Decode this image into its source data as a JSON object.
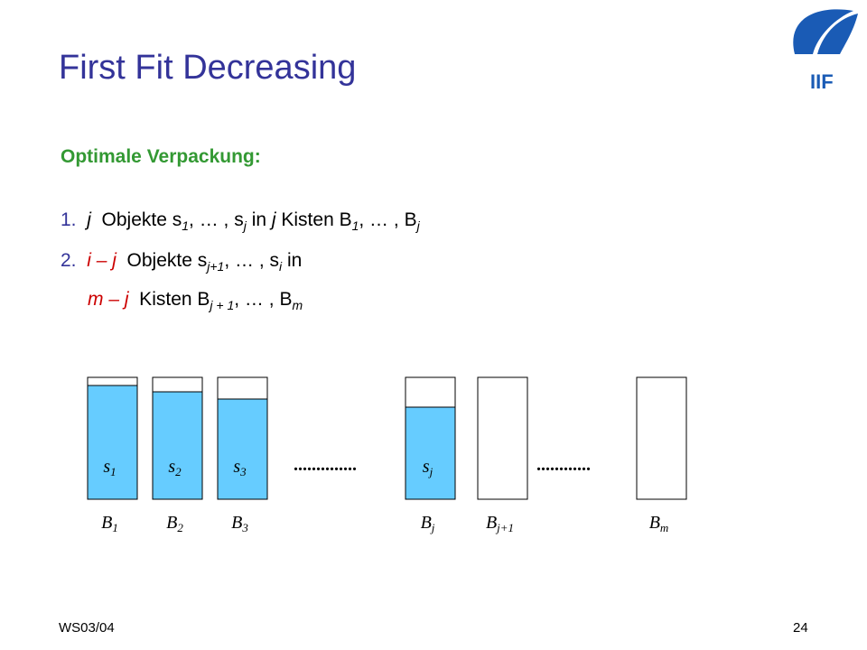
{
  "title": "First Fit Decreasing",
  "heading": "Optimale Verpackung:",
  "items": [
    [
      {
        "text": "1.  ",
        "style": "number"
      },
      {
        "text": "j",
        "style": "italic"
      },
      {
        "text": "  Objekte s",
        "style": "plain"
      },
      {
        "text": "1",
        "style": "sub"
      },
      {
        "text": ", … , s",
        "style": "plain"
      },
      {
        "text": "j",
        "style": "sub"
      },
      {
        "text": " in ",
        "style": "plain"
      },
      {
        "text": "j",
        "style": "italic"
      },
      {
        "text": " Kisten B",
        "style": "plain"
      },
      {
        "text": "1",
        "style": "sub"
      },
      {
        "text": ", … , B",
        "style": "plain"
      },
      {
        "text": "j",
        "style": "sub"
      }
    ],
    [
      {
        "text": "2.  ",
        "style": "number"
      },
      {
        "text": "i – j",
        "style": "red"
      },
      {
        "text": "  Objekte s",
        "style": "plain"
      },
      {
        "text": "j+1",
        "style": "sub"
      },
      {
        "text": ", … , s",
        "style": "plain"
      },
      {
        "text": "i",
        "style": "sub"
      },
      {
        "text": " in",
        "style": "plain"
      }
    ],
    [
      {
        "text": "m – j",
        "style": "red"
      },
      {
        "text": "  Kisten B",
        "style": "plain"
      },
      {
        "text": "j + 1",
        "style": "sub"
      },
      {
        "text": ", … , B",
        "style": "plain"
      },
      {
        "text": "m",
        "style": "sub"
      }
    ]
  ],
  "bins": [
    {
      "content": [
        "s",
        "1"
      ],
      "label": [
        "B",
        "1"
      ]
    },
    {
      "content": [
        "s",
        "2"
      ],
      "label": [
        "B",
        "2"
      ]
    },
    {
      "content": [
        "s",
        "3"
      ],
      "label": [
        "B",
        "3"
      ]
    },
    {
      "content": [
        "s",
        "j"
      ],
      "label": [
        "B",
        "j"
      ]
    },
    {
      "label": [
        "B",
        "j+1"
      ]
    },
    {
      "label": [
        "B",
        "m"
      ]
    }
  ],
  "dots": [
    "..............",
    "............"
  ],
  "logo": "IIF",
  "footer": {
    "left": "WS03/04",
    "page": "24"
  }
}
